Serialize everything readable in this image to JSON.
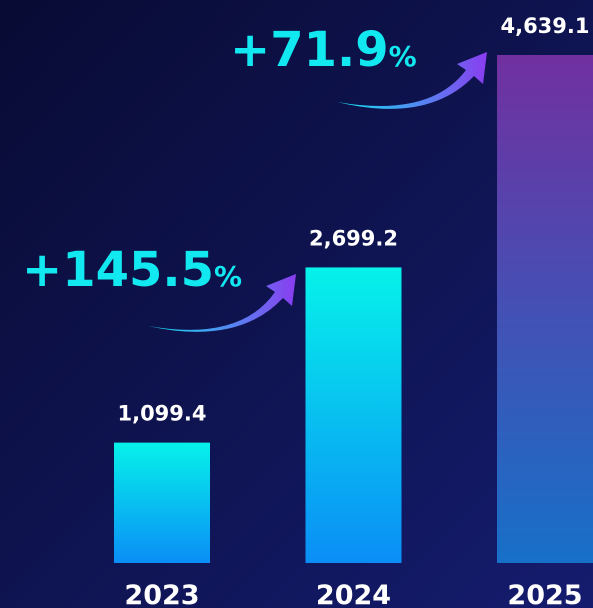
{
  "chart_data": {
    "type": "bar",
    "categories": [
      "2023",
      "2024",
      "2025"
    ],
    "values": [
      1099.4,
      2699.2,
      4639.1
    ],
    "value_labels": [
      "1,099.4",
      "2,699.2",
      "4,639.1"
    ],
    "colors": [
      [
        "#06f2ea",
        "#0a8ef6"
      ],
      [
        "#06f2ea",
        "#0a8ef6"
      ],
      [
        "#7130a0",
        "#1770c8"
      ]
    ],
    "annotations": [
      "+145.5%",
      "+71.9%"
    ]
  }
}
